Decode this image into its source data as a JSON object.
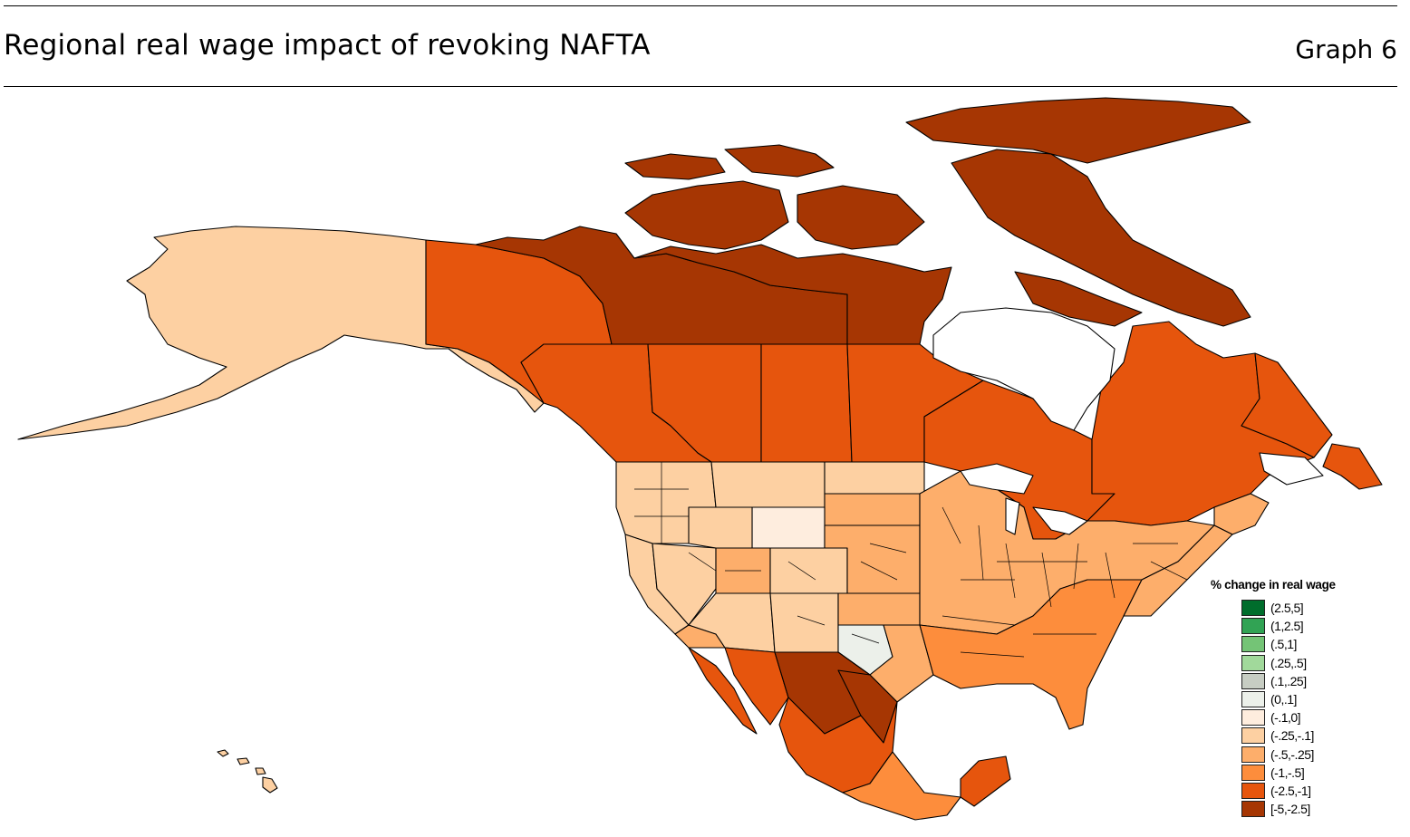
{
  "header": {
    "title": "Regional real wage impact of revoking NAFTA",
    "graph_number": "Graph 6"
  },
  "map": {
    "region": "North America",
    "regions": [
      {
        "name": "Alaska",
        "class": "(-.25,-.1]",
        "color": "#fdd0a2"
      },
      {
        "name": "Yukon",
        "class": "(-2.5,-1]",
        "color": "#e6550d"
      },
      {
        "name": "Northwest Territories",
        "class": "[-5,-2.5]",
        "color": "#a63603"
      },
      {
        "name": "Nunavut",
        "class": "[-5,-2.5]",
        "color": "#a63603"
      },
      {
        "name": "British Columbia",
        "class": "(-2.5,-1]",
        "color": "#e6550d"
      },
      {
        "name": "Alberta",
        "class": "(-2.5,-1]",
        "color": "#e6550d"
      },
      {
        "name": "Saskatchewan",
        "class": "(-2.5,-1]",
        "color": "#e6550d"
      },
      {
        "name": "Manitoba",
        "class": "(-2.5,-1]",
        "color": "#e6550d"
      },
      {
        "name": "Ontario",
        "class": "(-2.5,-1]",
        "color": "#e6550d"
      },
      {
        "name": "Quebec",
        "class": "(-2.5,-1]",
        "color": "#e6550d"
      },
      {
        "name": "Newfoundland and Labrador",
        "class": "(-2.5,-1]",
        "color": "#e6550d"
      },
      {
        "name": "Wyoming",
        "class": "(-.1,0]",
        "color": "#feedde"
      },
      {
        "name": "West Texas",
        "class": "(0,.1]",
        "color": "#ecf0ea"
      },
      {
        "name": "Northern Mexico",
        "class": "[-5,-2.5]",
        "color": "#a63603"
      },
      {
        "name": "Baja California",
        "class": "(-2.5,-1]",
        "color": "#e6550d"
      },
      {
        "name": "Yucatan",
        "class": "(-2.5,-1]",
        "color": "#e6550d"
      }
    ]
  },
  "legend": {
    "title": "% change in real wage",
    "items": [
      {
        "label": "(2.5,5]",
        "color": "#006d2c"
      },
      {
        "label": "(1,2.5]",
        "color": "#31a354"
      },
      {
        "label": "(.5,1]",
        "color": "#74c476"
      },
      {
        "label": "(.25,.5]",
        "color": "#a1d99b"
      },
      {
        "label": "(.1,.25]",
        "color": "#c7cdc3"
      },
      {
        "label": "(0,.1]",
        "color": "#ecf0ea"
      },
      {
        "label": "(-.1,0]",
        "color": "#feedde"
      },
      {
        "label": "(-.25,-.1]",
        "color": "#fdd0a2"
      },
      {
        "label": "(-.5,-.25]",
        "color": "#fdae6b"
      },
      {
        "label": "(-1,-.5]",
        "color": "#fd8d3c"
      },
      {
        "label": "(-2.5,-1]",
        "color": "#e6550d"
      },
      {
        "label": "[-5,-2.5]",
        "color": "#a63603"
      }
    ]
  }
}
